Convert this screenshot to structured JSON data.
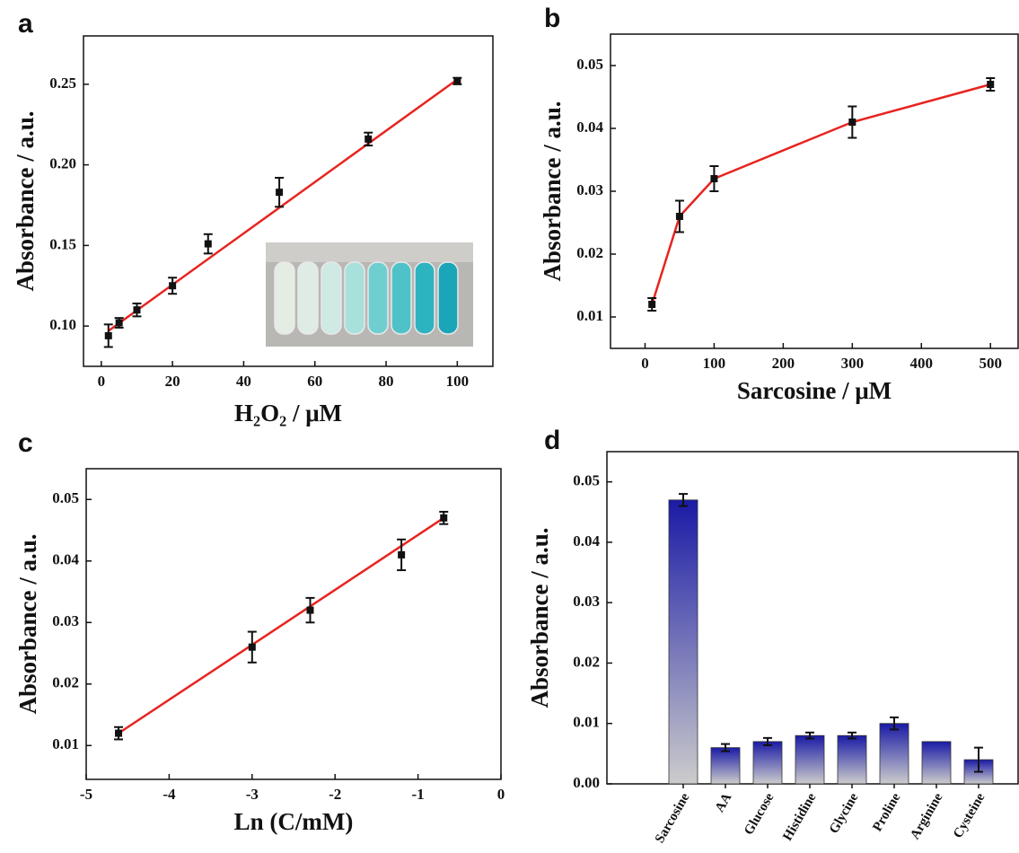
{
  "chart_data": [
    {
      "type": "scatter",
      "label": "a",
      "xlabel": "H₂O₂ / μM",
      "ylabel": "Absorbance / a.u.",
      "x": [
        2,
        5,
        10,
        20,
        30,
        50,
        75,
        100
      ],
      "values": [
        0.094,
        0.102,
        0.11,
        0.125,
        0.151,
        0.183,
        0.216,
        0.252
      ],
      "errors": [
        0.007,
        0.003,
        0.004,
        0.005,
        0.006,
        0.009,
        0.004,
        0.002
      ],
      "color": "#111111",
      "fit": {
        "x": [
          2,
          100
        ],
        "values": [
          0.097,
          0.253
        ],
        "color": "#e8231f"
      },
      "xlim": [
        -5,
        110
      ],
      "ylim": [
        0.075,
        0.28
      ],
      "xticks": [
        0,
        20,
        40,
        60,
        80,
        100
      ],
      "yticks": [
        {
          "value": 0.1,
          "label": "0.10"
        },
        0.15,
        {
          "value": 0.2,
          "label": "0.20"
        },
        0.25
      ]
    },
    {
      "type": "line",
      "label": "b",
      "xlabel": "Sarcosine / μM",
      "ylabel": "Absorbance / a.u.",
      "x": [
        10,
        50,
        100,
        300,
        500
      ],
      "values": [
        0.012,
        0.026,
        0.032,
        0.041,
        0.047
      ],
      "errors": [
        0.001,
        0.0025,
        0.002,
        0.0025,
        0.001
      ],
      "color": "#e8231f",
      "marker_color": "#111111",
      "xlim": [
        -50,
        540
      ],
      "ylim": [
        0.005,
        0.055
      ],
      "xticks": [
        0,
        100,
        200,
        300,
        400,
        500
      ],
      "yticks": [
        0.01,
        0.02,
        0.03,
        0.04,
        0.05
      ]
    },
    {
      "type": "scatter",
      "label": "c",
      "xlabel": "Ln (C/mM)",
      "ylabel": "Absorbance / a.u.",
      "x": [
        -4.61,
        -3.0,
        -2.3,
        -1.2,
        -0.69
      ],
      "values": [
        0.012,
        0.026,
        0.032,
        0.041,
        0.047
      ],
      "errors": [
        0.001,
        0.0025,
        0.002,
        0.0025,
        0.001
      ],
      "color": "#111111",
      "fit": {
        "x": [
          -4.61,
          -0.69
        ],
        "values": [
          0.012,
          0.047
        ],
        "color": "#e8231f"
      },
      "xlim": [
        -5,
        0
      ],
      "ylim": [
        0.0045,
        0.055
      ],
      "xticks": [
        -5,
        -4,
        -3,
        -2,
        -1,
        0
      ],
      "yticks": [
        0.01,
        0.02,
        0.03,
        0.04,
        0.05
      ]
    },
    {
      "type": "bar",
      "label": "d",
      "ylabel": "Absorbance / a.u.",
      "categories": [
        "Sarcosine",
        "AA",
        "Glucose",
        "Histidine",
        "Glycine",
        "Proline",
        "Arginine",
        "Cysteine"
      ],
      "values": [
        0.047,
        0.006,
        0.007,
        0.008,
        0.008,
        0.01,
        0.007,
        0.004
      ],
      "errors": [
        0.001,
        0.0006,
        0.0006,
        0.0005,
        0.0005,
        0.001,
        null,
        0.002
      ],
      "color_top": "#1a1aa6",
      "color_bottom": "#cccccc",
      "ylim": [
        0,
        0.055
      ],
      "yticks": [
        {
          "value": 0,
          "label": "0.00"
        },
        0.01,
        0.02,
        0.03,
        0.04,
        0.05
      ]
    }
  ]
}
